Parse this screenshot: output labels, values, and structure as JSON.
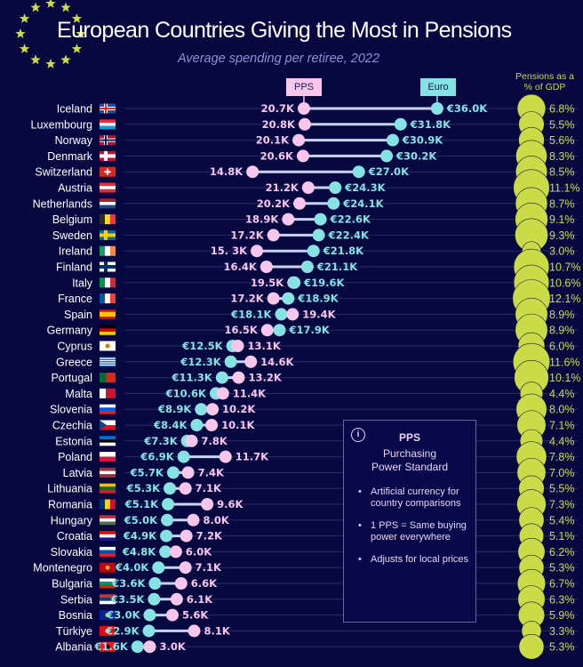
{
  "header": {
    "title": "European Countries Giving the Most in Pensions",
    "subtitle": "Average spending per retiree, 2022"
  },
  "legend": {
    "pps_label": "PPS",
    "euro_label": "Euro",
    "gdp_label_line1": "Pensions as a",
    "gdp_label_line2": "% of GDP"
  },
  "info_box": {
    "icon": "info-icon",
    "icon_glyph": "i",
    "title": "PPS",
    "subtitle_line1": "Purchasing",
    "subtitle_line2": "Power Standard",
    "bullets": [
      "Artificial currency for country comparisons",
      "1 PPS = Same buying power everywhere",
      "Adjusts for local prices"
    ]
  },
  "colors": {
    "background": "#06083f",
    "pps": "#f7c6ea",
    "euro": "#86e3e4",
    "gdp": "#cadb48",
    "connector": "#c9d4f2",
    "gridline": "#2a2d6e"
  },
  "chart_data": {
    "type": "dumbbell",
    "title": "European Countries Giving the Most in Pensions",
    "subtitle": "Average spending per retiree, 2022",
    "units": "thousands",
    "series": [
      {
        "name": "PPS",
        "key": "pps",
        "prefix": "",
        "suffix": "K"
      },
      {
        "name": "Euro",
        "key": "euro",
        "prefix": "€",
        "suffix": "K"
      },
      {
        "name": "Pensions as a % of GDP",
        "key": "gdp",
        "suffix": "%"
      }
    ],
    "rows": [
      {
        "country": "Iceland",
        "flag": "iceland-flag",
        "pps": 20.7,
        "euro": 36.0,
        "gdp": 6.8
      },
      {
        "country": "Luxembourg",
        "flag": "luxembourg-flag",
        "pps": 20.8,
        "euro": 31.8,
        "gdp": 5.5
      },
      {
        "country": "Norway",
        "flag": "norway-flag",
        "pps": 20.1,
        "euro": 30.9,
        "gdp": 5.6
      },
      {
        "country": "Denmark",
        "flag": "denmark-flag",
        "pps": 20.6,
        "euro": 30.2,
        "gdp": 8.3
      },
      {
        "country": "Switzerland",
        "flag": "switzerland-flag",
        "pps": 14.8,
        "euro": 27.0,
        "gdp": 8.5
      },
      {
        "country": "Austria",
        "flag": "austria-flag",
        "pps": 21.2,
        "euro": 24.3,
        "gdp": 11.1
      },
      {
        "country": "Netherlands",
        "flag": "netherlands-flag",
        "pps": 20.2,
        "euro": 24.1,
        "gdp": 8.7
      },
      {
        "country": "Belgium",
        "flag": "belgium-flag",
        "pps": 18.9,
        "euro": 22.6,
        "gdp": 9.1
      },
      {
        "country": "Sweden",
        "flag": "sweden-flag",
        "pps": 17.2,
        "euro": 22.4,
        "gdp": 9.3
      },
      {
        "country": "Ireland",
        "flag": "ireland-flag",
        "pps": 15.3,
        "pps_label": "15. 3K",
        "euro": 21.8,
        "gdp": 3.0
      },
      {
        "country": "Finland",
        "flag": "finland-flag",
        "pps": 16.4,
        "euro": 21.1,
        "gdp": 10.7
      },
      {
        "country": "Italy",
        "flag": "italy-flag",
        "pps": 19.5,
        "euro": 19.6,
        "gdp": 10.6
      },
      {
        "country": "France",
        "flag": "france-flag",
        "pps": 17.2,
        "euro": 18.9,
        "gdp": 12.1
      },
      {
        "country": "Spain",
        "flag": "spain-flag",
        "pps": 19.4,
        "euro": 18.1,
        "gdp": 8.9
      },
      {
        "country": "Germany",
        "flag": "germany-flag",
        "pps": 16.5,
        "euro": 17.9,
        "gdp": 8.9
      },
      {
        "country": "Cyprus",
        "flag": "cyprus-flag",
        "pps": 13.1,
        "euro": 12.5,
        "gdp": 6.0
      },
      {
        "country": "Greece",
        "flag": "greece-flag",
        "pps": 14.6,
        "euro": 12.3,
        "gdp": 11.6
      },
      {
        "country": "Portugal",
        "flag": "portugal-flag",
        "pps": 13.2,
        "euro": 11.3,
        "gdp": 10.1
      },
      {
        "country": "Malta",
        "flag": "malta-flag",
        "pps": 11.4,
        "euro": 10.6,
        "gdp": 4.4
      },
      {
        "country": "Slovenia",
        "flag": "slovenia-flag",
        "pps": 10.2,
        "euro": 8.9,
        "gdp": 8.0
      },
      {
        "country": "Czechia",
        "flag": "czechia-flag",
        "pps": 10.1,
        "euro": 8.4,
        "gdp": 7.1
      },
      {
        "country": "Estonia",
        "flag": "estonia-flag",
        "pps": 7.8,
        "euro": 7.3,
        "gdp": 4.4
      },
      {
        "country": "Poland",
        "flag": "poland-flag",
        "pps": 11.7,
        "euro": 6.9,
        "gdp": 7.8
      },
      {
        "country": "Latvia",
        "flag": "latvia-flag",
        "pps": 7.4,
        "euro": 5.7,
        "gdp": 7.0
      },
      {
        "country": "Lithuania",
        "flag": "lithuania-flag",
        "pps": 7.1,
        "euro": 5.3,
        "gdp": 5.5
      },
      {
        "country": "Romania",
        "flag": "romania-flag",
        "pps": 9.6,
        "euro": 5.1,
        "gdp": 7.3
      },
      {
        "country": "Hungary",
        "flag": "hungary-flag",
        "pps": 8.0,
        "euro": 5.0,
        "gdp": 5.4
      },
      {
        "country": "Croatia",
        "flag": "croatia-flag",
        "pps": 7.2,
        "euro": 4.9,
        "gdp": 5.1
      },
      {
        "country": "Slovakia",
        "flag": "slovakia-flag",
        "pps": 6.0,
        "euro": 4.8,
        "gdp": 6.2
      },
      {
        "country": "Montenegro",
        "flag": "montenegro-flag",
        "pps": 7.1,
        "euro": 4.0,
        "gdp": 5.3
      },
      {
        "country": "Bulgaria",
        "flag": "bulgaria-flag",
        "pps": 6.6,
        "euro": 3.6,
        "gdp": 6.7
      },
      {
        "country": "Serbia",
        "flag": "serbia-flag",
        "pps": 6.1,
        "euro": 3.5,
        "gdp": 6.3
      },
      {
        "country": "Bosnia",
        "flag": "bosnia-flag",
        "pps": 5.6,
        "euro": 3.0,
        "gdp": 5.9
      },
      {
        "country": "Türkiye",
        "flag": "turkiye-flag",
        "pps": 8.1,
        "euro": 2.9,
        "gdp": 3.3
      },
      {
        "country": "Albania",
        "flag": "albania-flag",
        "pps": 3.0,
        "euro": 1.6,
        "gdp": 5.3
      }
    ]
  }
}
